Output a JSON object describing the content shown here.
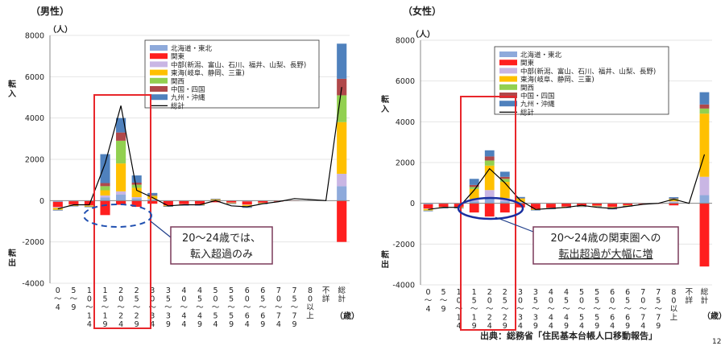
{
  "categories": [
    "0～4",
    "5～9",
    "10～14",
    "15～19",
    "20～24",
    "25～29",
    "30～34",
    "35～39",
    "40～44",
    "45～49",
    "50～54",
    "55～59",
    "60～64",
    "65～69",
    "70～74",
    "75～79",
    "80以上",
    "不詳",
    "総計"
  ],
  "legend": [
    "北海道・東北",
    "関東",
    "中部(新潟、富山、石川、福井、山梨、長野)",
    "東海(岐阜、静岡、三重)",
    "関西",
    "中国・四国",
    "九州・沖縄",
    "総計"
  ],
  "colors": {
    "hokkaido_tohoku": "#8eaadb",
    "kanto": "#ff1f1f",
    "chubu": "#c9b6e4",
    "tokai": "#ffc000",
    "kansai": "#92d050",
    "chugoku_shikoku": "#b0484a",
    "kyushu_okinawa": "#4f81bd",
    "total_line": "#000000",
    "highlight": "#e8262b",
    "callout_border": "#7a3a5a",
    "ellipse_male": "#1f4fb0",
    "ellipse_female": "#1a2fa0"
  },
  "source": "出典：総務省「住民基本台帳人口移動報告」",
  "page_number": "12",
  "chart_data": [
    {
      "type": "bar",
      "stacked": true,
      "title": "（男性）",
      "unit": "（人）",
      "xlabel": "（歳）",
      "ylabel_top": "転入",
      "ylabel_bottom": "転出",
      "ylim": [
        -4000,
        8000
      ],
      "yticks": [
        -4000,
        -2000,
        0,
        2000,
        4000,
        6000,
        8000
      ],
      "annotation": [
        "20～24歳では、",
        "転入超過のみ"
      ],
      "series": [
        {
          "name": "北海道・東北",
          "values": [
            -60,
            -30,
            -20,
            150,
            300,
            120,
            60,
            -20,
            -20,
            -20,
            10,
            -10,
            -40,
            -20,
            0,
            0,
            0,
            0,
            700
          ]
        },
        {
          "name": "関東",
          "values": [
            -250,
            -150,
            -200,
            -700,
            -200,
            -300,
            -150,
            -200,
            -150,
            -150,
            -80,
            -80,
            -150,
            -80,
            -40,
            -20,
            0,
            0,
            -2000
          ]
        },
        {
          "name": "中部(新潟、富山、石川、福井、山梨、長野)",
          "values": [
            -40,
            -20,
            -20,
            100,
            150,
            50,
            20,
            -10,
            -10,
            -10,
            10,
            -10,
            -20,
            -10,
            0,
            0,
            0,
            0,
            600
          ]
        },
        {
          "name": "東海(岐阜、静岡、三重)",
          "values": [
            -80,
            -40,
            -40,
            250,
            1350,
            450,
            130,
            -30,
            -20,
            -20,
            40,
            -20,
            -60,
            -20,
            0,
            0,
            0,
            0,
            2500
          ]
        },
        {
          "name": "関西",
          "values": [
            -20,
            -10,
            -10,
            200,
            1100,
            150,
            30,
            -10,
            -10,
            -10,
            10,
            -10,
            -20,
            -10,
            0,
            0,
            0,
            0,
            1300
          ]
        },
        {
          "name": "中国・四国",
          "values": [
            -10,
            -10,
            -10,
            150,
            400,
            100,
            30,
            -10,
            -10,
            -10,
            10,
            -10,
            -20,
            -10,
            0,
            0,
            0,
            0,
            800
          ]
        },
        {
          "name": "九州・沖縄",
          "values": [
            -20,
            -20,
            -20,
            1400,
            700,
            350,
            100,
            -20,
            -20,
            -20,
            10,
            -20,
            -40,
            -20,
            0,
            0,
            0,
            0,
            1700
          ]
        }
      ],
      "total": [
        -400,
        -200,
        -200,
        1800,
        4600,
        500,
        150,
        -250,
        -200,
        -200,
        0,
        -250,
        -300,
        -150,
        -50,
        100,
        50,
        0,
        5500
      ],
      "highlight_categories": [
        "15～19",
        "20～24"
      ]
    },
    {
      "type": "bar",
      "stacked": true,
      "title": "（女性）",
      "unit": "（人）",
      "xlabel": "（歳）",
      "ylabel_top": "転入",
      "ylabel_bottom": "転出",
      "ylim": [
        -4000,
        8000
      ],
      "yticks": [
        -4000,
        -2000,
        0,
        2000,
        4000,
        6000,
        8000
      ],
      "annotation": [
        "20～24歳の関東圏への",
        "転出超過が大幅に増"
      ],
      "series": [
        {
          "name": "北海道・東北",
          "values": [
            -50,
            -20,
            -20,
            100,
            250,
            100,
            40,
            -20,
            -20,
            -10,
            -10,
            -10,
            -20,
            -10,
            0,
            0,
            50,
            0,
            400
          ]
        },
        {
          "name": "関東",
          "values": [
            -200,
            -150,
            -150,
            -450,
            -650,
            -450,
            -200,
            -250,
            -200,
            -150,
            -100,
            -100,
            -150,
            -80,
            -40,
            -20,
            -100,
            0,
            -3100
          ]
        },
        {
          "name": "中部(新潟、富山、石川、福井、山梨、長野)",
          "values": [
            -30,
            -10,
            -10,
            100,
            400,
            150,
            30,
            -10,
            -10,
            -10,
            -10,
            -10,
            -20,
            -10,
            0,
            0,
            50,
            0,
            900
          ]
        },
        {
          "name": "東海(岐阜、静岡、三重)",
          "values": [
            -60,
            -30,
            -30,
            500,
            1200,
            800,
            150,
            -30,
            -20,
            -20,
            -20,
            -20,
            -40,
            -20,
            0,
            0,
            100,
            0,
            3100
          ]
        },
        {
          "name": "関西",
          "values": [
            -20,
            -10,
            -10,
            100,
            250,
            150,
            20,
            -10,
            -10,
            -10,
            -10,
            -10,
            -20,
            -10,
            0,
            0,
            20,
            0,
            250
          ]
        },
        {
          "name": "中国・四国",
          "values": [
            -10,
            -10,
            -10,
            100,
            200,
            100,
            20,
            -10,
            -10,
            -10,
            -10,
            -10,
            -20,
            -10,
            0,
            0,
            20,
            0,
            200
          ]
        },
        {
          "name": "九州・沖縄",
          "values": [
            -20,
            -20,
            -20,
            300,
            300,
            250,
            50,
            -20,
            -20,
            -20,
            -10,
            -10,
            -30,
            -10,
            0,
            0,
            60,
            0,
            600
          ]
        }
      ],
      "total": [
        -300,
        -200,
        -200,
        650,
        1700,
        1000,
        150,
        -300,
        -250,
        -200,
        -100,
        -200,
        -250,
        -150,
        -50,
        0,
        200,
        0,
        2400
      ],
      "highlight_categories": [
        "15～19",
        "20～24",
        "25～29"
      ]
    }
  ]
}
